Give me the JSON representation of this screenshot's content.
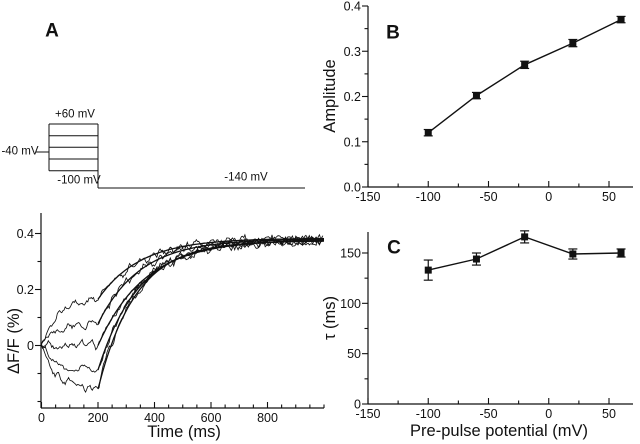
{
  "figure": {
    "bg": "#ffffff",
    "ink": "#111111"
  },
  "panels": {
    "a": {
      "letter": "A"
    },
    "b": {
      "letter": "B"
    },
    "c": {
      "letter": "C"
    }
  },
  "protocol": {
    "pre_labels": {
      "top": "+60 mV",
      "holding": "-40 mV",
      "bottom": "-100 mV",
      "tail": "-140 mV"
    }
  },
  "chart_data": [
    {
      "id": "voltage-protocol",
      "type": "diagram",
      "step_levels_mV": [
        60,
        20,
        -20,
        -60,
        -100
      ],
      "holding_mV": -40,
      "tail_mV": -140,
      "pre_pulse_duration_ms": 200,
      "visible_labels": [
        "+60 mV",
        "-40 mV",
        "-100 mV",
        "-140 mV"
      ]
    },
    {
      "id": "fluorescence-traces",
      "type": "line",
      "xlabel": "Time (ms)",
      "ylabel": "ΔF/F (%)",
      "xlim": [
        0,
        1000
      ],
      "ylim": [
        -0.22,
        0.46
      ],
      "xticks": {
        "values": [
          0,
          200,
          400,
          600,
          800
        ],
        "labels": [
          "0",
          "200",
          "400",
          "600",
          "800"
        ],
        "minor_step": 50
      },
      "yticks": {
        "values": [
          0,
          0.2,
          0.4
        ],
        "labels": [
          "0",
          "0.2",
          "0.4"
        ],
        "minor_step": 0.1
      },
      "pre_pulse_end_ms": 200,
      "series": [
        {
          "pre_pulse_mV": 60,
          "pre_level": 0.17,
          "tau_ms": 150,
          "plateau": 0.383
        },
        {
          "pre_pulse_mV": 20,
          "pre_level": 0.08,
          "tau_ms": 149,
          "plateau": 0.38
        },
        {
          "pre_pulse_mV": -20,
          "pre_level": 0.0,
          "tau_ms": 166,
          "plateau": 0.378
        },
        {
          "pre_pulse_mV": -60,
          "pre_level": -0.09,
          "tau_ms": 144,
          "plateau": 0.376
        },
        {
          "pre_pulse_mV": -100,
          "pre_level": -0.16,
          "tau_ms": 133,
          "plateau": 0.374
        }
      ]
    },
    {
      "id": "amplitude-vs-prepulse",
      "type": "scatter",
      "xlabel": "Pre-pulse potential (mV)",
      "ylabel": "Amplitude",
      "x": [
        -100,
        -60,
        -20,
        20,
        60
      ],
      "y": [
        0.12,
        0.202,
        0.27,
        0.318,
        0.37
      ],
      "yerr": [
        0.007,
        0.007,
        0.008,
        0.008,
        0.007
      ],
      "xlim": [
        -150,
        65
      ],
      "ylim": [
        0,
        0.415
      ],
      "xticks": {
        "values": [
          -150,
          -100,
          -50,
          0,
          50
        ],
        "labels": [
          "-150",
          "-100",
          "-50",
          "0",
          "50"
        ],
        "minor_step": 25
      },
      "yticks": {
        "values": [
          0,
          0.1,
          0.2,
          0.3,
          0.4
        ],
        "labels": [
          "0.0",
          "0.1",
          "0.2",
          "0.3",
          "0.4"
        ],
        "minor_step": 0.05
      }
    },
    {
      "id": "tau-vs-prepulse",
      "type": "scatter",
      "xlabel": "Pre-pulse potential (mV)",
      "ylabel": "τ (ms)",
      "x": [
        -100,
        -60,
        -20,
        20,
        60
      ],
      "y": [
        133,
        144,
        166,
        149,
        150
      ],
      "yerr": [
        10,
        6,
        6,
        5,
        4
      ],
      "xlim": [
        -150,
        65
      ],
      "ylim": [
        0,
        171
      ],
      "xticks": {
        "values": [
          -150,
          -100,
          -50,
          0,
          50
        ],
        "labels": [
          "-150",
          "-100",
          "-50",
          "0",
          "50"
        ],
        "minor_step": 25
      },
      "yticks": {
        "values": [
          0,
          50,
          100,
          150
        ],
        "labels": [
          "0",
          "50",
          "100",
          "150"
        ],
        "minor_step": 25
      }
    }
  ]
}
